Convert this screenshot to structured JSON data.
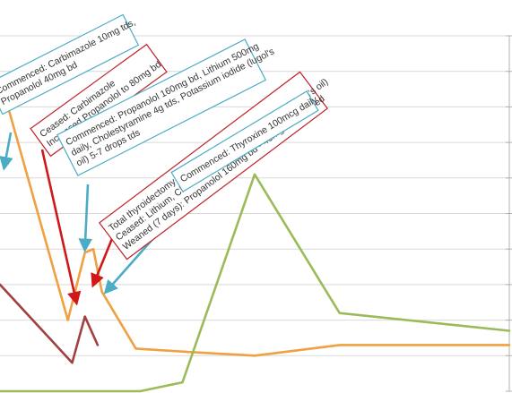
{
  "chart_data": {
    "type": "line",
    "title": "",
    "xlabel": "",
    "ylabel": "",
    "x": [
      0,
      1,
      2,
      3,
      4,
      5,
      6,
      7,
      8,
      9,
      10,
      11,
      12
    ],
    "ylim": [
      0,
      100
    ],
    "grid": true,
    "series": [
      {
        "color": "#f0a040",
        "points": [
          [
            0,
            88
          ],
          [
            1.6,
            20
          ],
          [
            2.0,
            39
          ],
          [
            2.2,
            40
          ],
          [
            2.4,
            28
          ],
          [
            3.2,
            12
          ],
          [
            4.5,
            11
          ],
          [
            6.0,
            10
          ],
          [
            8.0,
            13
          ],
          [
            12.0,
            13
          ]
        ]
      },
      {
        "color": "#9bbb59",
        "points": [
          [
            0,
            0
          ],
          [
            3.3,
            0
          ],
          [
            4.3,
            2.5
          ],
          [
            6.0,
            61
          ],
          [
            8.0,
            22
          ],
          [
            12.0,
            17
          ]
        ]
      },
      {
        "color": "#a04040",
        "points": [
          [
            0,
            30
          ],
          [
            1.7,
            8
          ],
          [
            2.0,
            21
          ],
          [
            2.3,
            13
          ]
        ]
      }
    ],
    "annotations": [
      {
        "text_lines": [
          "Commenced: Carbimazole 10mg tds,",
          "Propanolol 40mg bd"
        ],
        "border": "#4bacc6",
        "arrow_color": "#4bacc6",
        "target": [
          0.1,
          63
        ]
      },
      {
        "text_lines": [
          "Ceased: Carbimazole",
          "Increased Propanolol to 80mg bd"
        ],
        "border": "#c0202a",
        "arrow_color": "#d01818",
        "target": [
          1.8,
          25
        ]
      },
      {
        "text_lines": [
          "Commenced: Propanolol 160mg bd, Lithium 500mg",
          "daily, Cholestyramine 4g tds, Potassium iodide (lugol's",
          "oil) 5-7 drops tds"
        ],
        "border": "#4bacc6",
        "arrow_color": "#4bacc6",
        "target": [
          2.0,
          40
        ]
      },
      {
        "text_lines": [
          "Total thyroidectomy",
          "Ceased: Lithium, Cholestyramine, Potassium iodide (lugol's oil)",
          "Weaned (7 days): Propanolol 160mg bd - 40mg bd - ceased"
        ],
        "border": "#c0202a",
        "arrow_color": "#d01818",
        "target": [
          2.2,
          30
        ]
      },
      {
        "text_lines": [
          "Commenced: Thyroxine 100mcg daily"
        ],
        "border": "#4bacc6",
        "arrow_color": "#4bacc6",
        "target": [
          2.5,
          28
        ]
      }
    ]
  }
}
